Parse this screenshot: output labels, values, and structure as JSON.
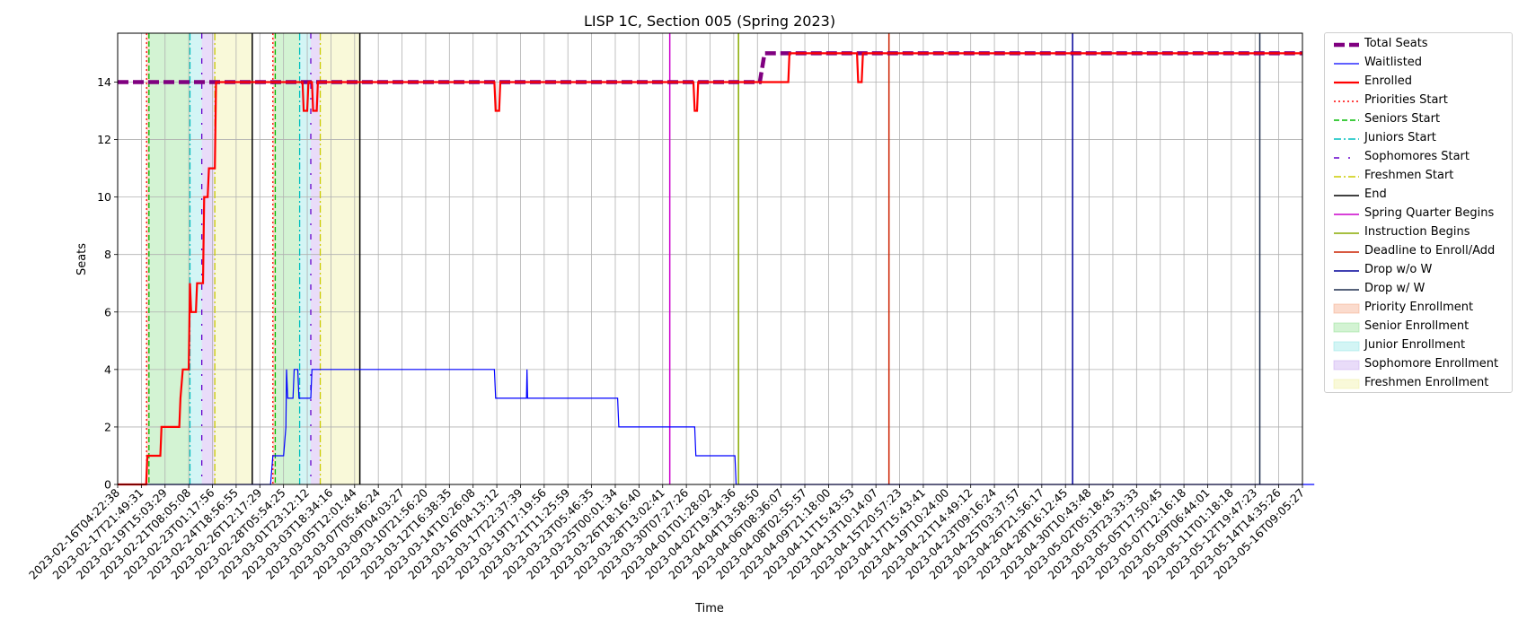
{
  "chart_data": {
    "type": "line",
    "title": "LISP 1C, Section 005 (Spring 2023)",
    "xlabel": "Time",
    "ylabel": "Seats",
    "ylim": [
      0,
      15.7
    ],
    "yticks": [
      0,
      2,
      4,
      6,
      8,
      10,
      12,
      14
    ],
    "x_range": [
      "2023-02-16T04:22:38",
      "2023-05-16T09:05:27"
    ],
    "grid": true,
    "legend_position": "outside-right",
    "xtick_labels": [
      "2023-02-16T04:22:38",
      "2023-02-17T21:49:31",
      "2023-02-19T15:03:29",
      "2023-02-21T08:05:08",
      "2023-02-23T01:17:56",
      "2023-02-24T18:56:55",
      "2023-02-26T12:17:29",
      "2023-02-28T05:54:25",
      "2023-03-01T23:12:12",
      "2023-03-03T18:34:16",
      "2023-03-05T12:01:44",
      "2023-03-07T05:46:24",
      "2023-03-09T04:03:27",
      "2023-03-10T21:56:20",
      "2023-03-12T16:38:35",
      "2023-03-14T10:26:08",
      "2023-03-16T04:13:12",
      "2023-03-17T22:37:39",
      "2023-03-19T17:19:56",
      "2023-03-21T11:25:59",
      "2023-03-23T05:46:35",
      "2023-03-25T00:01:34",
      "2023-03-26T18:16:40",
      "2023-03-28T13:02:41",
      "2023-03-30T07:27:26",
      "2023-04-01T01:28:02",
      "2023-04-02T19:34:36",
      "2023-04-04T13:58:50",
      "2023-04-06T08:36:07",
      "2023-04-08T02:55:57",
      "2023-04-09T21:18:00",
      "2023-04-11T15:43:53",
      "2023-04-13T10:14:07",
      "2023-04-15T20:57:23",
      "2023-04-17T15:43:41",
      "2023-04-19T10:24:00",
      "2023-04-21T14:49:12",
      "2023-04-23T09:16:24",
      "2023-04-25T03:37:57",
      "2023-04-26T21:56:17",
      "2023-04-28T16:12:45",
      "2023-04-30T10:43:48",
      "2023-05-02T05:18:45",
      "2023-05-03T23:33:33",
      "2023-05-05T17:50:45",
      "2023-05-07T12:16:18",
      "2023-05-09T06:44:01",
      "2023-05-11T01:18:18",
      "2023-05-12T19:47:23",
      "2023-05-14T14:35:26",
      "2023-05-16T09:05:27"
    ],
    "series": [
      {
        "name": "Total Seats",
        "color": "#800080",
        "style": "dashed-thick",
        "points": [
          [
            0,
            14
          ],
          [
            27.1,
            14
          ],
          [
            27.3,
            15
          ],
          [
            50,
            15
          ]
        ]
      },
      {
        "name": "Waitlisted",
        "color": "#0000ff",
        "style": "solid-thin",
        "points": [
          [
            0,
            0
          ],
          [
            12.9,
            0
          ],
          [
            13.1,
            1
          ],
          [
            14,
            1
          ],
          [
            14.2,
            2
          ],
          [
            14.25,
            4
          ],
          [
            14.35,
            3
          ],
          [
            14.8,
            3
          ],
          [
            14.9,
            4
          ],
          [
            15.2,
            4
          ],
          [
            15.3,
            3
          ],
          [
            16.3,
            3
          ],
          [
            16.4,
            4
          ],
          [
            31.8,
            4
          ],
          [
            31.9,
            3
          ],
          [
            34.5,
            3
          ],
          [
            34.55,
            4
          ],
          [
            34.6,
            3
          ],
          [
            42.2,
            3
          ],
          [
            42.3,
            2
          ],
          [
            48.7,
            2
          ],
          [
            48.8,
            1
          ],
          [
            52.1,
            1
          ],
          [
            52.2,
            0
          ],
          [
            101,
            0
          ]
        ],
        "x_mode": "tick_index_scaled"
      },
      {
        "name": "Enrolled",
        "color": "#ff0000",
        "style": "solid-thick",
        "points": [
          [
            0,
            0
          ],
          [
            1.2,
            0
          ],
          [
            1.25,
            1
          ],
          [
            1.8,
            1
          ],
          [
            1.85,
            2
          ],
          [
            2.6,
            2
          ],
          [
            2.65,
            3
          ],
          [
            2.75,
            4
          ],
          [
            3.0,
            4
          ],
          [
            3.05,
            7
          ],
          [
            3.1,
            6
          ],
          [
            3.3,
            6
          ],
          [
            3.35,
            7
          ],
          [
            3.6,
            7
          ],
          [
            3.65,
            10
          ],
          [
            3.8,
            10
          ],
          [
            3.85,
            11
          ],
          [
            4.1,
            11
          ],
          [
            4.15,
            14
          ],
          [
            7.8,
            14
          ],
          [
            7.85,
            13
          ],
          [
            8.0,
            13
          ],
          [
            8.05,
            14
          ],
          [
            8.2,
            14
          ],
          [
            8.25,
            13
          ],
          [
            8.4,
            13
          ],
          [
            8.45,
            14
          ],
          [
            15.9,
            14
          ],
          [
            15.95,
            13
          ],
          [
            16.1,
            13
          ],
          [
            16.15,
            14
          ],
          [
            24.3,
            14
          ],
          [
            24.35,
            13
          ],
          [
            24.45,
            13
          ],
          [
            24.5,
            14
          ],
          [
            27.4,
            14
          ],
          [
            28.3,
            14
          ],
          [
            28.35,
            15
          ],
          [
            31.2,
            15
          ],
          [
            31.25,
            14
          ],
          [
            31.4,
            14
          ],
          [
            31.45,
            15
          ],
          [
            50,
            15
          ]
        ]
      }
    ],
    "vertical_lines": [
      {
        "name": "Priorities Start",
        "color": "#ff0000",
        "style": "dotted",
        "x": [
          1.22,
          6.55
        ]
      },
      {
        "name": "Seniors Start",
        "color": "#00bb00",
        "style": "dashed",
        "x": [
          1.32,
          6.65
        ]
      },
      {
        "name": "Juniors Start",
        "color": "#00bfbf",
        "style": "dashdot",
        "x": [
          3.05,
          7.68
        ]
      },
      {
        "name": "Sophomores Start",
        "color": "#6600cc",
        "style": "dashdot-sparse",
        "x": [
          3.55,
          8.15
        ]
      },
      {
        "name": "Freshmen Start",
        "color": "#cccc00",
        "style": "dashdot",
        "x": [
          4.1,
          8.55
        ]
      },
      {
        "name": "End",
        "color": "#000000",
        "style": "solid",
        "x": [
          5.68,
          10.22
        ]
      },
      {
        "name": "Spring Quarter Begins",
        "color": "#cc00cc",
        "style": "solid",
        "x": [
          23.3
        ]
      },
      {
        "name": "Instruction Begins",
        "color": "#88aa00",
        "style": "solid",
        "x": [
          26.2
        ]
      },
      {
        "name": "Deadline to Enroll/Add",
        "color": "#cc2200",
        "style": "solid",
        "x": [
          32.55
        ]
      },
      {
        "name": "Drop w/o W",
        "color": "#000099",
        "style": "solid",
        "x": [
          40.3
        ]
      },
      {
        "name": "Drop w/ W",
        "color": "#1f2f4f",
        "style": "solid",
        "x": [
          48.2
        ]
      }
    ],
    "shaded_regions": [
      {
        "name": "Priority Enrollment",
        "color": "#f4a582",
        "spans": [
          [
            1.22,
            1.32
          ],
          [
            6.55,
            6.65
          ]
        ]
      },
      {
        "name": "Senior Enrollment",
        "color": "#90e090",
        "spans": [
          [
            1.32,
            3.05
          ],
          [
            6.65,
            7.68
          ]
        ]
      },
      {
        "name": "Junior Enrollment",
        "color": "#90e6e6",
        "spans": [
          [
            3.05,
            3.55
          ],
          [
            7.68,
            8.15
          ]
        ]
      },
      {
        "name": "Sophomore Enrollment",
        "color": "#c8a8f0",
        "spans": [
          [
            3.55,
            4.1
          ],
          [
            8.15,
            8.55
          ]
        ]
      },
      {
        "name": "Freshmen Enrollment",
        "color": "#f0f0a0",
        "spans": [
          [
            4.1,
            5.68
          ],
          [
            8.55,
            10.22
          ]
        ]
      }
    ]
  }
}
